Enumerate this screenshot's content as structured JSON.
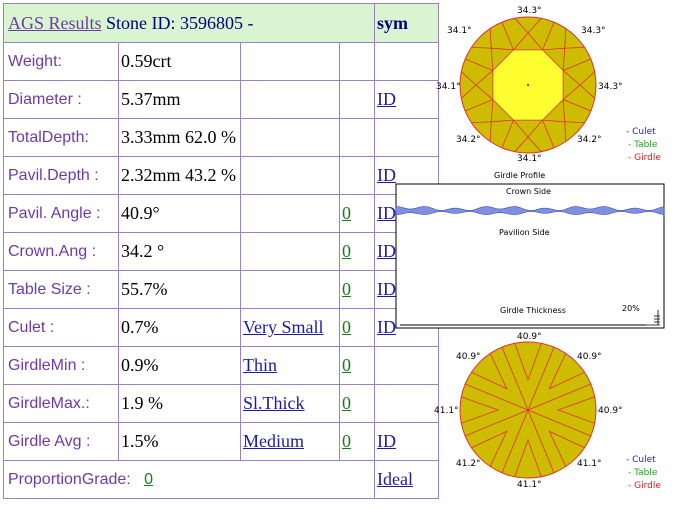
{
  "header": {
    "title": "AGS  Results",
    "stone_label": "Stone ID:",
    "stone_id": "3596805 -",
    "sym": "sym"
  },
  "rows": [
    {
      "label": "Weight:",
      "value": "0.59crt",
      "desc": "",
      "grade": "",
      "sym": ""
    },
    {
      "label": "Diameter :",
      "value": "5.37mm",
      "desc": "",
      "grade": "",
      "sym": "ID"
    },
    {
      "label": "TotalDepth:",
      "value": "3.33mm 62.0 %",
      "desc": "",
      "grade": "",
      "sym": ""
    },
    {
      "label": "Pavil.Depth :",
      "value": "2.32mm 43.2 %",
      "desc": "",
      "grade": "",
      "sym": "ID"
    },
    {
      "label": "Pavil. Angle :",
      "value": "40.9°",
      "desc": "",
      "grade": "0",
      "sym": "ID "
    },
    {
      "label": "Crown.Ang :",
      "value": "34.2 °",
      "desc": "",
      "grade": "0",
      "sym": "ID "
    },
    {
      "label": "Table Size :",
      "value": "55.7%",
      "desc": "",
      "grade": "0",
      "sym": "ID "
    },
    {
      "label": "Culet :",
      "value": "0.7%",
      "desc": "Very Small",
      "grade": "0",
      "sym": "ID "
    },
    {
      "label": "GirdleMin :",
      "value": "0.9%",
      "desc": "Thin",
      "grade": "0",
      "sym": ""
    },
    {
      "label": "GirdleMax.:",
      "value": "1.9 %",
      "desc": "Sl.Thick ",
      "grade": "0",
      "sym": ""
    },
    {
      "label": "Girdle Avg :",
      "value": "1.5%",
      "desc": "Medium ",
      "grade": "0",
      "sym": "ID "
    }
  ],
  "footer": {
    "label": "ProportionGrade:",
    "grade": "0",
    "result": "Ideal "
  },
  "crown_diagram": {
    "angles": [
      "34.3°",
      "34.1°",
      "34.3°",
      "34.1°",
      "34.3°",
      "34.2°",
      "34.2°",
      "34.1°"
    ],
    "legend": [
      "- Culet",
      "- Table",
      "- Girdle"
    ],
    "legend_colors": [
      "#2020cc",
      "#20a020",
      "#cc2020"
    ]
  },
  "profile": {
    "title": "Girdle Profile",
    "crown_side": "Crown Side",
    "pavilion_side": "Pavilion Side",
    "thickness_label": "Girdle Thickness",
    "thickness_pct": "20%"
  },
  "pavilion_diagram": {
    "angles": [
      "40.9°",
      "40.9°",
      "40.9°",
      "41.1°",
      "40.9°",
      "41.2°",
      "41.1°",
      "41.1°"
    ],
    "legend": [
      "- Culet",
      "- Table",
      "- Girdle"
    ]
  },
  "colors": {
    "facet_fill": "#cdbc00",
    "table_fill": "#ffff30",
    "facet_line": "#e03030",
    "label_purple": "#6e3aa8",
    "border": "#9a82c0",
    "header_bg": "#d9f4d0"
  }
}
